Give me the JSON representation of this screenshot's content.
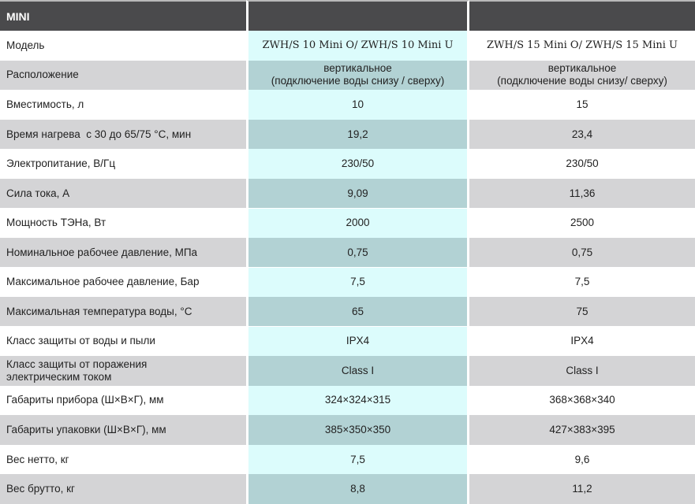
{
  "header": {
    "title": "MINI",
    "col1": "",
    "col2": ""
  },
  "rows": [
    {
      "label": "Модель",
      "v1": "ZWH/S 10 Mini O/ ZWH/S 10 Mini U",
      "v2": "ZWH/S 15 Mini O/ ZWH/S 15 Mini U"
    },
    {
      "label": "Расположение",
      "v1": "вертикальное\n(подключение воды снизу / сверху)",
      "v2": "вертикальное\n(подключение воды снизу/ сверху)"
    },
    {
      "label": "Вместимость, л",
      "v1": "10",
      "v2": "15"
    },
    {
      "label": "Время нагрева  с 30 до 65/75 °C, мин",
      "v1": "19,2",
      "v2": "23,4"
    },
    {
      "label": "Электропитание, В/Гц",
      "v1": "230/50",
      "v2": "230/50"
    },
    {
      "label": "Сила тока, А",
      "v1": "9,09",
      "v2": "11,36"
    },
    {
      "label": "Мощность ТЭНа, Вт",
      "v1": "2000",
      "v2": "2500"
    },
    {
      "label": "Номинальное рабочее давление, МПа",
      "v1": "0,75",
      "v2": "0,75"
    },
    {
      "label": "Максимальное рабочее давление, Бар",
      "v1": "7,5",
      "v2": "7,5"
    },
    {
      "label": "Максимальная температура воды, °C",
      "v1": "65",
      "v2": "75"
    },
    {
      "label": "Класс защиты от воды и пыли",
      "v1": "IPX4",
      "v2": "IPX4"
    },
    {
      "label": "Класс защиты от поражения\nэлектрическим током",
      "v1": "Class I",
      "v2": "Class I"
    },
    {
      "label": "Габариты прибора (Ш×В×Г), мм",
      "v1": "324×324×315",
      "v2": "368×368×340"
    },
    {
      "label": "Габариты упаковки (Ш×В×Г), мм",
      "v1": "385×350×350",
      "v2": "427×383×395"
    },
    {
      "label": "Вес нетто, кг",
      "v1": "7,5",
      "v2": "9,6"
    },
    {
      "label": "Вес брутто, кг",
      "v1": "8,8",
      "v2": "11,2"
    }
  ]
}
